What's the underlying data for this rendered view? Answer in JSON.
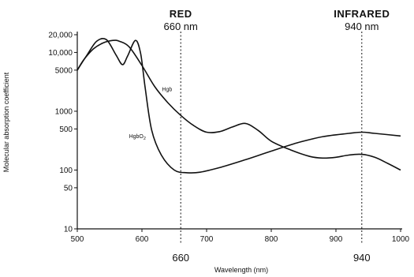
{
  "chart_data": {
    "type": "line",
    "title": "",
    "xlabel": "Wavelength (nm)",
    "ylabel": "Molecular absorption coefficient",
    "x_scale": "linear",
    "y_scale": "log",
    "xlim": [
      500,
      1000
    ],
    "ylim": [
      10,
      20000
    ],
    "x_ticks": [
      "500",
      "600",
      "700",
      "800",
      "900",
      "1000"
    ],
    "y_ticks": [
      {
        "value": 20000,
        "label": "20,000"
      },
      {
        "value": 10000,
        "label": "10,000"
      },
      {
        "value": 5000,
        "label": "5000"
      },
      {
        "value": 1000,
        "label": "1000"
      },
      {
        "value": 500,
        "label": "500"
      },
      {
        "value": 100,
        "label": "100"
      },
      {
        "value": 50,
        "label": "50"
      },
      {
        "value": 10,
        "label": "10"
      }
    ],
    "grid": false,
    "series": [
      {
        "name": "Hgb",
        "x": [
          500,
          510,
          525,
          540,
          555,
          565,
          580,
          600,
          620,
          640,
          660,
          680,
          700,
          720,
          740,
          760,
          780,
          800,
          830,
          860,
          880,
          900,
          920,
          940,
          960,
          980,
          1000
        ],
        "y": [
          5000,
          7500,
          11500,
          14500,
          16000,
          15500,
          12500,
          6000,
          2600,
          1400,
          850,
          570,
          440,
          450,
          540,
          620,
          470,
          310,
          220,
          170,
          160,
          165,
          180,
          185,
          165,
          130,
          100
        ]
      },
      {
        "name": "HgbO2",
        "x": [
          500,
          515,
          530,
          545,
          560,
          570,
          578,
          590,
          598,
          605,
          615,
          630,
          650,
          670,
          690,
          720,
          760,
          800,
          840,
          880,
          920,
          940,
          960,
          1000
        ],
        "y": [
          5000,
          9000,
          15500,
          16500,
          9000,
          6200,
          8800,
          16000,
          9500,
          2500,
          480,
          180,
          100,
          90,
          92,
          110,
          150,
          210,
          290,
          370,
          420,
          440,
          420,
          380
        ]
      }
    ],
    "annotations": [
      {
        "label": "RED",
        "sublabel": "660 nm",
        "x": 660,
        "bottom_label": "660"
      },
      {
        "label": "INFRARED",
        "sublabel": "940 nm",
        "x": 940,
        "bottom_label": "940"
      }
    ],
    "legend": "none (series labelled directly on curves)"
  }
}
